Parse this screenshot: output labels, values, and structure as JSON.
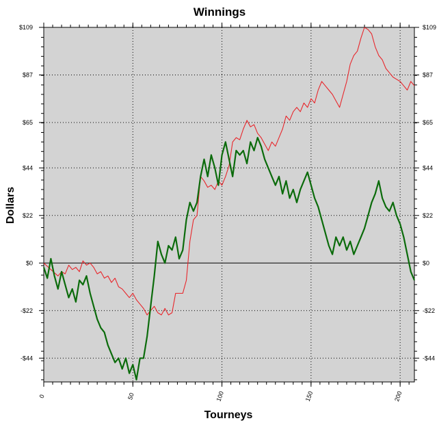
{
  "chart_data": {
    "type": "line",
    "title": "Winnings",
    "xlabel": "Tourneys",
    "ylabel": "Dollars",
    "xlim": [
      0,
      208
    ],
    "ylim": [
      -55,
      109
    ],
    "x_ticks": [
      0,
      50,
      100,
      150,
      200
    ],
    "x_tick_labels": [
      "0",
      "50",
      "100",
      "150",
      "200"
    ],
    "y_ticks": [
      109,
      87,
      65,
      44,
      22,
      0,
      -22,
      -44
    ],
    "y_tick_labels": [
      "$109",
      "$87",
      "$65",
      "$44",
      "$22",
      "$0",
      "-$22",
      "-$44"
    ],
    "grid": true,
    "legend": "none",
    "background": "#d3d3d3",
    "series": [
      {
        "color": "#e8262b",
        "points": [
          [
            0,
            0
          ],
          [
            4,
            -3
          ],
          [
            8,
            -6
          ],
          [
            10,
            -4
          ],
          [
            12,
            -5
          ],
          [
            14,
            -1
          ],
          [
            16,
            -3
          ],
          [
            18,
            -2
          ],
          [
            20,
            -4
          ],
          [
            22,
            1
          ],
          [
            24,
            -1
          ],
          [
            26,
            0
          ],
          [
            28,
            -2
          ],
          [
            30,
            -5
          ],
          [
            32,
            -4
          ],
          [
            34,
            -7
          ],
          [
            36,
            -6
          ],
          [
            38,
            -9
          ],
          [
            40,
            -7
          ],
          [
            42,
            -11
          ],
          [
            44,
            -12
          ],
          [
            46,
            -14
          ],
          [
            48,
            -16
          ],
          [
            50,
            -14
          ],
          [
            52,
            -17
          ],
          [
            54,
            -19
          ],
          [
            56,
            -21
          ],
          [
            58,
            -24
          ],
          [
            60,
            -22
          ],
          [
            62,
            -20
          ],
          [
            64,
            -23
          ],
          [
            66,
            -24
          ],
          [
            68,
            -21
          ],
          [
            70,
            -24
          ],
          [
            72,
            -23
          ],
          [
            74,
            -14
          ],
          [
            76,
            -14
          ],
          [
            78,
            -14
          ],
          [
            80,
            -8
          ],
          [
            82,
            10
          ],
          [
            84,
            20
          ],
          [
            86,
            22
          ],
          [
            88,
            40
          ],
          [
            90,
            38
          ],
          [
            92,
            35
          ],
          [
            94,
            36
          ],
          [
            96,
            34
          ],
          [
            98,
            38
          ],
          [
            100,
            36
          ],
          [
            102,
            40
          ],
          [
            104,
            45
          ],
          [
            106,
            56
          ],
          [
            108,
            58
          ],
          [
            110,
            57
          ],
          [
            112,
            62
          ],
          [
            114,
            66
          ],
          [
            116,
            63
          ],
          [
            118,
            64
          ],
          [
            120,
            60
          ],
          [
            122,
            58
          ],
          [
            124,
            55
          ],
          [
            126,
            52
          ],
          [
            128,
            56
          ],
          [
            130,
            54
          ],
          [
            132,
            58
          ],
          [
            134,
            62
          ],
          [
            136,
            68
          ],
          [
            138,
            66
          ],
          [
            140,
            70
          ],
          [
            142,
            72
          ],
          [
            144,
            70
          ],
          [
            146,
            74
          ],
          [
            148,
            72
          ],
          [
            150,
            76
          ],
          [
            152,
            74
          ],
          [
            154,
            80
          ],
          [
            156,
            84
          ],
          [
            158,
            82
          ],
          [
            160,
            80
          ],
          [
            162,
            78
          ],
          [
            164,
            75
          ],
          [
            166,
            72
          ],
          [
            168,
            78
          ],
          [
            170,
            84
          ],
          [
            172,
            92
          ],
          [
            174,
            96
          ],
          [
            176,
            98
          ],
          [
            178,
            104
          ],
          [
            180,
            109
          ],
          [
            182,
            108
          ],
          [
            184,
            106
          ],
          [
            186,
            100
          ],
          [
            188,
            96
          ],
          [
            190,
            94
          ],
          [
            192,
            90
          ],
          [
            194,
            88
          ],
          [
            196,
            86
          ],
          [
            198,
            85
          ],
          [
            200,
            84
          ],
          [
            202,
            82
          ],
          [
            204,
            80
          ],
          [
            206,
            84
          ],
          [
            208,
            82
          ]
        ]
      },
      {
        "color": "#0b6b0b",
        "points": [
          [
            0,
            -2
          ],
          [
            2,
            -7
          ],
          [
            4,
            2
          ],
          [
            6,
            -6
          ],
          [
            8,
            -12
          ],
          [
            10,
            -4
          ],
          [
            12,
            -10
          ],
          [
            14,
            -16
          ],
          [
            16,
            -12
          ],
          [
            18,
            -18
          ],
          [
            20,
            -8
          ],
          [
            22,
            -10
          ],
          [
            24,
            -6
          ],
          [
            26,
            -14
          ],
          [
            28,
            -20
          ],
          [
            30,
            -26
          ],
          [
            32,
            -30
          ],
          [
            34,
            -32
          ],
          [
            36,
            -38
          ],
          [
            38,
            -42
          ],
          [
            40,
            -46
          ],
          [
            42,
            -44
          ],
          [
            44,
            -49
          ],
          [
            46,
            -44
          ],
          [
            48,
            -51
          ],
          [
            50,
            -47
          ],
          [
            52,
            -54
          ],
          [
            54,
            -44
          ],
          [
            56,
            -44
          ],
          [
            58,
            -34
          ],
          [
            60,
            -20
          ],
          [
            62,
            -6
          ],
          [
            64,
            10
          ],
          [
            66,
            4
          ],
          [
            68,
            0
          ],
          [
            70,
            8
          ],
          [
            72,
            6
          ],
          [
            74,
            12
          ],
          [
            76,
            2
          ],
          [
            78,
            6
          ],
          [
            80,
            20
          ],
          [
            82,
            28
          ],
          [
            84,
            24
          ],
          [
            86,
            28
          ],
          [
            88,
            40
          ],
          [
            90,
            48
          ],
          [
            92,
            40
          ],
          [
            94,
            50
          ],
          [
            96,
            44
          ],
          [
            98,
            36
          ],
          [
            100,
            50
          ],
          [
            102,
            56
          ],
          [
            104,
            48
          ],
          [
            106,
            40
          ],
          [
            108,
            52
          ],
          [
            110,
            50
          ],
          [
            112,
            52
          ],
          [
            114,
            46
          ],
          [
            116,
            56
          ],
          [
            118,
            52
          ],
          [
            120,
            58
          ],
          [
            122,
            54
          ],
          [
            124,
            48
          ],
          [
            126,
            44
          ],
          [
            128,
            40
          ],
          [
            130,
            36
          ],
          [
            132,
            40
          ],
          [
            134,
            32
          ],
          [
            136,
            38
          ],
          [
            138,
            30
          ],
          [
            140,
            34
          ],
          [
            142,
            28
          ],
          [
            144,
            34
          ],
          [
            146,
            38
          ],
          [
            148,
            42
          ],
          [
            150,
            36
          ],
          [
            152,
            30
          ],
          [
            154,
            26
          ],
          [
            156,
            20
          ],
          [
            158,
            14
          ],
          [
            160,
            8
          ],
          [
            162,
            4
          ],
          [
            164,
            12
          ],
          [
            166,
            8
          ],
          [
            168,
            12
          ],
          [
            170,
            6
          ],
          [
            172,
            10
          ],
          [
            174,
            4
          ],
          [
            176,
            8
          ],
          [
            178,
            12
          ],
          [
            180,
            16
          ],
          [
            182,
            22
          ],
          [
            184,
            28
          ],
          [
            186,
            32
          ],
          [
            188,
            38
          ],
          [
            190,
            30
          ],
          [
            192,
            26
          ],
          [
            194,
            24
          ],
          [
            196,
            28
          ],
          [
            198,
            22
          ],
          [
            200,
            18
          ],
          [
            202,
            12
          ],
          [
            204,
            4
          ],
          [
            206,
            -4
          ],
          [
            208,
            -8
          ]
        ]
      }
    ]
  }
}
